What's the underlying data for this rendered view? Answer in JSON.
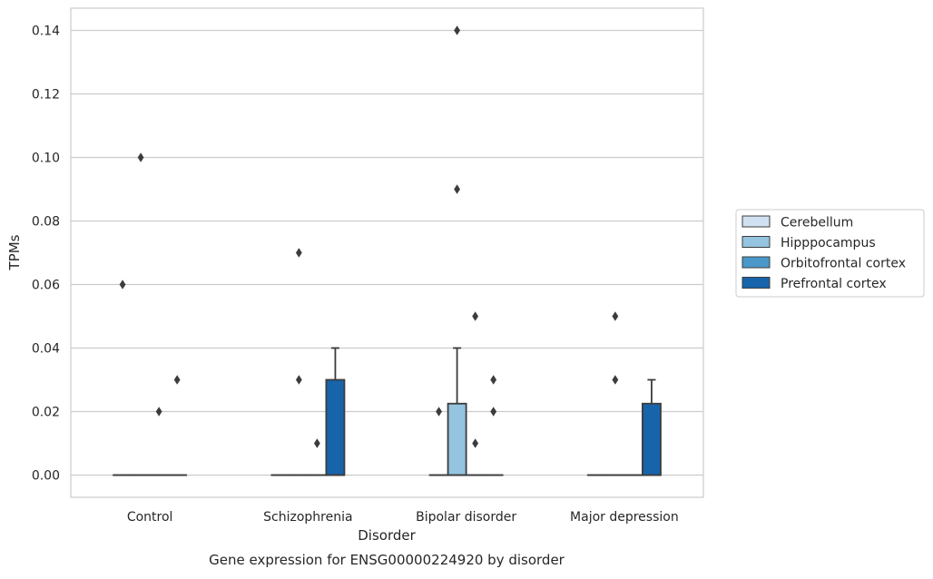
{
  "chart_data": {
    "type": "box",
    "title": "",
    "caption": "Gene expression for ENSG00000224920 by disorder",
    "xlabel": "Disorder",
    "ylabel": "TPMs",
    "ylim": [
      -0.007,
      0.147
    ],
    "yticks": [
      0.0,
      0.02,
      0.04,
      0.06,
      0.08,
      0.1,
      0.12,
      0.14
    ],
    "ytick_labels": [
      "0.00",
      "0.02",
      "0.04",
      "0.06",
      "0.08",
      "0.10",
      "0.12",
      "0.14"
    ],
    "grid": "horizontal",
    "legend_position": "outside-right",
    "categories": [
      "Control",
      "Schizophrenia",
      "Bipolar disorder",
      "Major depression"
    ],
    "series": [
      {
        "name": "Cerebellum",
        "color": "#d0e1f2",
        "boxes": [
          {
            "q1": 0,
            "median": 0,
            "q3": 0,
            "whisker_low": 0,
            "whisker_high": 0,
            "outliers": [
              0.06
            ]
          },
          {
            "q1": 0,
            "median": 0,
            "q3": 0,
            "whisker_low": 0,
            "whisker_high": 0,
            "outliers": []
          },
          {
            "q1": 0,
            "median": 0,
            "q3": 0,
            "whisker_low": 0,
            "whisker_high": 0,
            "outliers": [
              0.02
            ]
          },
          {
            "q1": 0,
            "median": 0,
            "q3": 0,
            "whisker_low": 0,
            "whisker_high": 0,
            "outliers": []
          }
        ]
      },
      {
        "name": "Hipppocampus",
        "color": "#94c4df",
        "boxes": [
          {
            "q1": 0,
            "median": 0,
            "q3": 0,
            "whisker_low": 0,
            "whisker_high": 0,
            "outliers": [
              0.1
            ]
          },
          {
            "q1": 0,
            "median": 0,
            "q3": 0,
            "whisker_low": 0,
            "whisker_high": 0,
            "outliers": [
              0.07,
              0.03
            ]
          },
          {
            "q1": 0,
            "median": 0,
            "q3": 0.0225,
            "whisker_low": 0,
            "whisker_high": 0.04,
            "outliers": [
              0.14,
              0.09
            ]
          },
          {
            "q1": 0,
            "median": 0,
            "q3": 0,
            "whisker_low": 0,
            "whisker_high": 0,
            "outliers": [
              0.05,
              0.03
            ]
          }
        ]
      },
      {
        "name": "Orbitofrontal cortex",
        "color": "#4a98c9",
        "boxes": [
          {
            "q1": 0,
            "median": 0,
            "q3": 0,
            "whisker_low": 0,
            "whisker_high": 0,
            "outliers": [
              0.02
            ]
          },
          {
            "q1": 0,
            "median": 0,
            "q3": 0,
            "whisker_low": 0,
            "whisker_high": 0,
            "outliers": [
              0.01
            ]
          },
          {
            "q1": 0,
            "median": 0,
            "q3": 0,
            "whisker_low": 0,
            "whisker_high": 0,
            "outliers": [
              0.05,
              0.01
            ]
          },
          {
            "q1": 0,
            "median": 0,
            "q3": 0,
            "whisker_low": 0,
            "whisker_high": 0,
            "outliers": []
          }
        ]
      },
      {
        "name": "Prefrontal cortex",
        "color": "#1764ab",
        "boxes": [
          {
            "q1": 0,
            "median": 0,
            "q3": 0,
            "whisker_low": 0,
            "whisker_high": 0,
            "outliers": [
              0.03
            ]
          },
          {
            "q1": 0,
            "median": 0,
            "q3": 0.03,
            "whisker_low": 0,
            "whisker_high": 0.04,
            "outliers": []
          },
          {
            "q1": 0,
            "median": 0,
            "q3": 0,
            "whisker_low": 0,
            "whisker_high": 0,
            "outliers": [
              0.03,
              0.02
            ]
          },
          {
            "q1": 0,
            "median": 0,
            "q3": 0.0225,
            "whisker_low": 0,
            "whisker_high": 0.03,
            "outliers": []
          }
        ]
      }
    ]
  }
}
